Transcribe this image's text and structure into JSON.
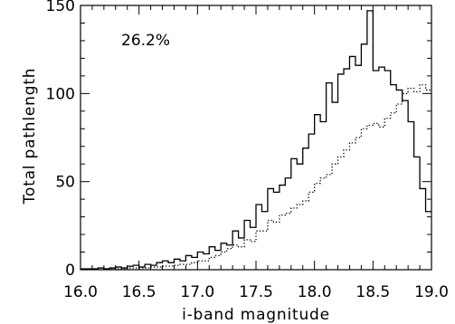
{
  "chart_data": {
    "type": "line",
    "title": "",
    "xlabel": "i-band magnitude",
    "ylabel": "Total pathlength",
    "xlim": [
      16.0,
      19.0
    ],
    "ylim": [
      0,
      150
    ],
    "xticks": [
      "16.0",
      "16.5",
      "17.0",
      "17.5",
      "18.0",
      "18.5",
      "19.0"
    ],
    "yticks": [
      "0",
      "50",
      "100",
      "150"
    ],
    "annotation": "26.2%",
    "grid": false,
    "legend": "none",
    "series": [
      {
        "style": "solid",
        "color": "#000000",
        "x": [
          16.0,
          16.05,
          16.1,
          16.15,
          16.2,
          16.25,
          16.3,
          16.35,
          16.4,
          16.45,
          16.5,
          16.55,
          16.6,
          16.65,
          16.7,
          16.75,
          16.8,
          16.85,
          16.9,
          16.95,
          17.0,
          17.05,
          17.1,
          17.15,
          17.2,
          17.25,
          17.3,
          17.35,
          17.4,
          17.45,
          17.5,
          17.55,
          17.6,
          17.65,
          17.7,
          17.75,
          17.8,
          17.85,
          17.9,
          17.95,
          18.0,
          18.05,
          18.1,
          18.15,
          18.2,
          18.25,
          18.3,
          18.35,
          18.4,
          18.45,
          18.5,
          18.55,
          18.6,
          18.65,
          18.7,
          18.75,
          18.8,
          18.85,
          18.9,
          18.95
        ],
        "y": [
          0.5,
          0.5,
          0.5,
          1,
          0.5,
          1,
          1.5,
          1,
          2,
          2.5,
          1.5,
          3,
          2.5,
          4,
          5,
          4,
          6,
          5,
          8,
          7,
          10,
          9,
          13,
          11,
          15,
          14,
          22,
          18,
          28,
          24,
          37,
          33,
          46,
          44,
          48,
          52,
          63,
          60,
          69,
          77,
          88,
          84,
          106,
          95,
          111,
          114,
          121,
          116,
          128,
          147,
          113,
          115,
          113,
          105,
          102,
          96,
          84,
          64,
          46,
          33
        ]
      },
      {
        "style": "dotted",
        "color": "#000000",
        "x": [
          16.0,
          16.05,
          16.1,
          16.15,
          16.2,
          16.25,
          16.3,
          16.35,
          16.4,
          16.45,
          16.5,
          16.55,
          16.6,
          16.65,
          16.7,
          16.75,
          16.8,
          16.85,
          16.9,
          16.95,
          17.0,
          17.05,
          17.1,
          17.15,
          17.2,
          17.25,
          17.3,
          17.35,
          17.4,
          17.45,
          17.5,
          17.55,
          17.6,
          17.65,
          17.7,
          17.75,
          17.8,
          17.85,
          17.9,
          17.95,
          18.0,
          18.05,
          18.1,
          18.15,
          18.2,
          18.25,
          18.3,
          18.35,
          18.4,
          18.45,
          18.5,
          18.55,
          18.6,
          18.65,
          18.7,
          18.75,
          18.8,
          18.85,
          18.9,
          18.95
        ],
        "y": [
          0,
          0,
          0,
          0,
          0.5,
          0.5,
          0.5,
          0.5,
          1,
          1,
          1,
          1,
          1.5,
          1.5,
          2,
          2,
          2.5,
          3,
          3,
          4,
          5,
          5,
          7,
          8,
          10,
          12,
          14,
          13,
          17,
          16,
          22,
          22,
          28,
          27,
          31,
          32,
          35,
          37,
          39,
          44,
          49,
          52,
          54,
          60,
          64,
          68,
          72,
          75,
          80,
          82,
          83,
          81,
          86,
          89,
          94,
          100,
          103,
          101,
          105,
          102
        ]
      }
    ]
  }
}
